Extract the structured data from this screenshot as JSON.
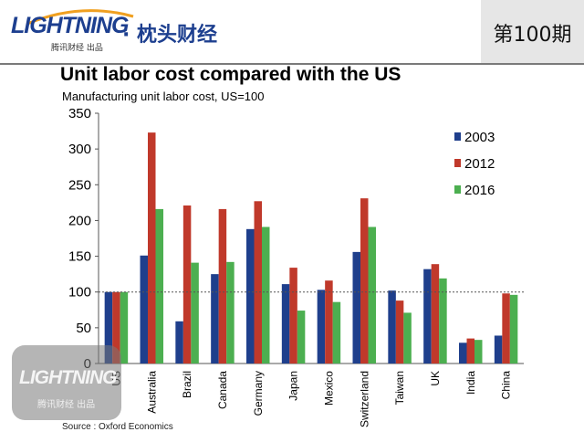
{
  "header": {
    "logo_text": "LIGHTNING",
    "logo_subtext": "腾讯财经 出品",
    "brand_text": "· 枕头财经",
    "issue_label": "第100期"
  },
  "watermark": {
    "logo_text": "LIGHTNING",
    "subtext": "腾讯财经 出品"
  },
  "chart_data": {
    "type": "bar",
    "title": "Unit labor cost compared with the US",
    "subtitle": "Manufacturing unit labor cost, US=100",
    "source": "Source : Oxford Economics",
    "categories": [
      "US",
      "Australia",
      "Brazil",
      "Canada",
      "Germany",
      "Japan",
      "Mexico",
      "Switzerland",
      "Taiwan",
      "UK",
      "India",
      "China"
    ],
    "series": [
      {
        "name": "2003",
        "color": "#1f3f8c",
        "values": [
          100,
          151,
          59,
          125,
          188,
          111,
          103,
          156,
          102,
          132,
          29,
          39
        ]
      },
      {
        "name": "2012",
        "color": "#c0392b",
        "values": [
          100,
          323,
          221,
          216,
          227,
          134,
          116,
          231,
          88,
          139,
          35,
          98
        ]
      },
      {
        "name": "2016",
        "color": "#4caf50",
        "values": [
          100,
          216,
          141,
          142,
          191,
          74,
          86,
          191,
          71,
          119,
          33,
          96
        ]
      }
    ],
    "ylim": [
      0,
      350
    ],
    "yticks": [
      0,
      50,
      100,
      150,
      200,
      250,
      300,
      350
    ],
    "reference_line": 100,
    "legend_position": "right"
  }
}
